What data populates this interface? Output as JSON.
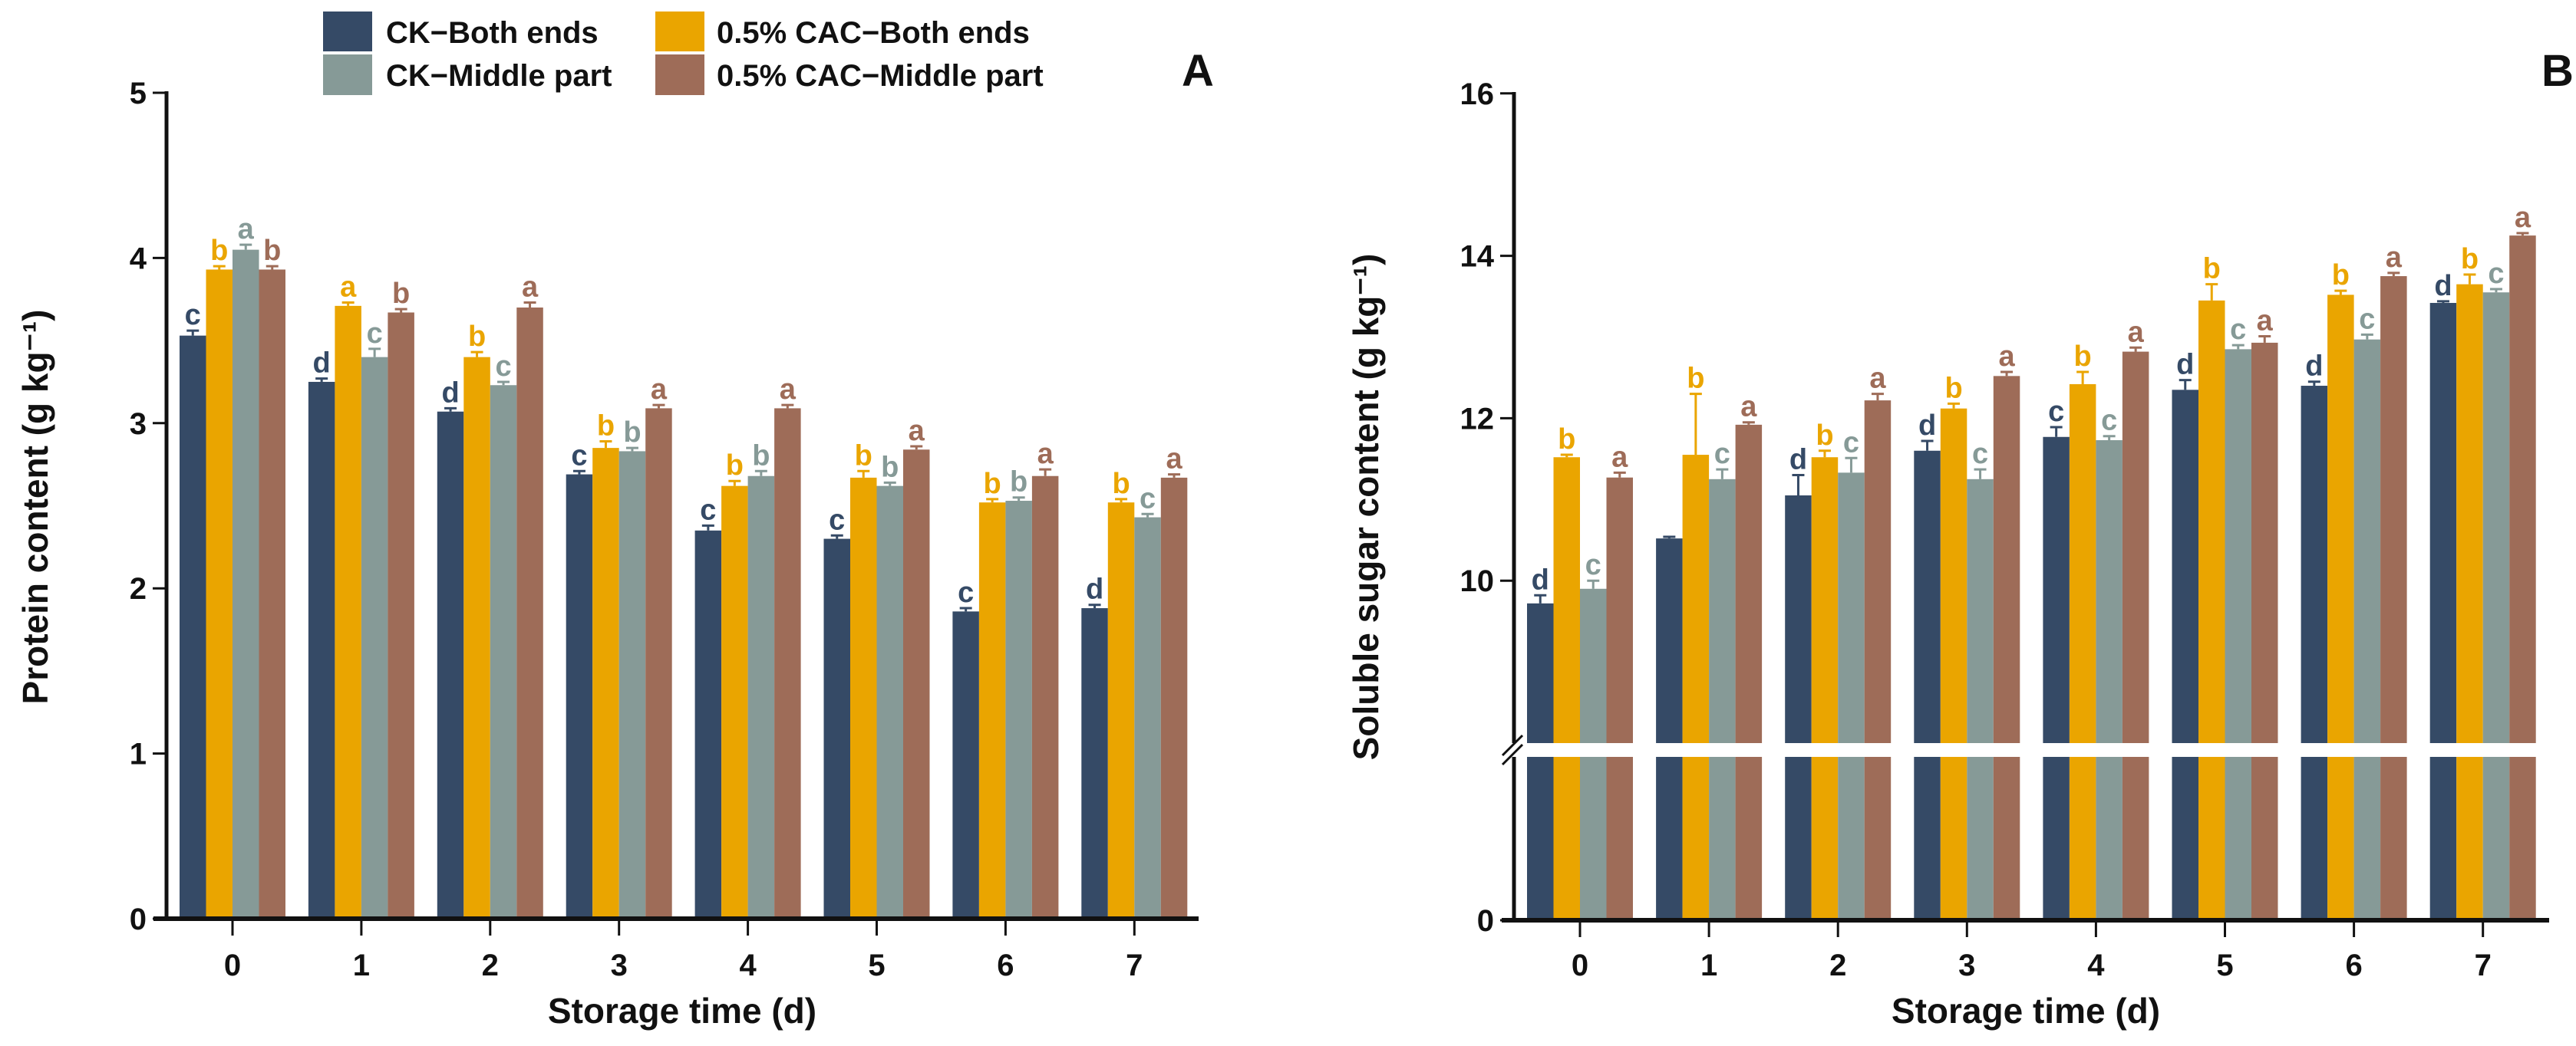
{
  "legend": {
    "items": [
      {
        "label": "CK−Both ends",
        "color": "#354a66"
      },
      {
        "label": "0.5% CAC−Both ends",
        "color": "#eaa500"
      },
      {
        "label": "CK−Middle part",
        "color": "#869a97"
      },
      {
        "label": "0.5% CAC−Middle part",
        "color": "#9e6c58"
      }
    ]
  },
  "chart_data": [
    {
      "type": "bar",
      "panel": "A",
      "title": "",
      "xlabel": "Storage time (d)",
      "ylabel": "Protein content (g kg⁻¹)",
      "ylim": [
        0,
        5
      ],
      "yticks": [
        "0",
        "1",
        "2",
        "3",
        "4",
        "5"
      ],
      "categories": [
        "0",
        "1",
        "2",
        "3",
        "4",
        "5",
        "6",
        "7"
      ],
      "series": [
        {
          "name": "CK−Both ends",
          "values": [
            3.53,
            3.25,
            3.07,
            2.69,
            2.35,
            2.3,
            1.86,
            1.88
          ],
          "errors": [
            0.03,
            0.02,
            0.02,
            0.02,
            0.03,
            0.02,
            0.02,
            0.02
          ],
          "letters": [
            "c",
            "d",
            "d",
            "c",
            "c",
            "c",
            "c",
            "d"
          ]
        },
        {
          "name": "0.5% CAC−Both ends",
          "values": [
            3.93,
            3.71,
            3.4,
            2.85,
            2.62,
            2.67,
            2.52,
            2.52
          ],
          "errors": [
            0.02,
            0.02,
            0.03,
            0.04,
            0.03,
            0.04,
            0.02,
            0.02
          ],
          "letters": [
            "b",
            "a",
            "b",
            "b",
            "b",
            "b",
            "b",
            "b"
          ]
        },
        {
          "name": "CK−Middle part",
          "values": [
            4.05,
            3.4,
            3.23,
            2.83,
            2.68,
            2.62,
            2.53,
            2.43
          ],
          "errors": [
            0.03,
            0.05,
            0.02,
            0.02,
            0.03,
            0.02,
            0.02,
            0.02
          ],
          "letters": [
            "a",
            "c",
            "c",
            "b",
            "b",
            "b",
            "b",
            "c"
          ]
        },
        {
          "name": "0.5% CAC−Middle part",
          "values": [
            3.93,
            3.67,
            3.7,
            3.09,
            3.09,
            2.84,
            2.68,
            2.67
          ],
          "errors": [
            0.02,
            0.02,
            0.03,
            0.02,
            0.02,
            0.02,
            0.04,
            0.02
          ],
          "letters": [
            "b",
            "b",
            "a",
            "a",
            "a",
            "a",
            "a",
            "a"
          ]
        }
      ]
    },
    {
      "type": "bar",
      "panel": "B",
      "title": "",
      "xlabel": "Storage time (d)",
      "ylabel": "Soluble sugar content (g kg⁻¹)",
      "ylim": [
        0,
        16
      ],
      "axis_break": [
        0,
        8
      ],
      "yticks": [
        "0",
        "10",
        "12",
        "14",
        "16"
      ],
      "categories": [
        "0",
        "1",
        "2",
        "3",
        "4",
        "5",
        "6",
        "7"
      ],
      "series": [
        {
          "name": "CK−Both ends",
          "values": [
            9.72,
            10.52,
            11.05,
            11.6,
            11.77,
            12.35,
            12.4,
            13.42
          ],
          "errors": [
            0.1,
            0.02,
            0.25,
            0.12,
            0.12,
            0.12,
            0.05,
            0.02
          ],
          "letters": [
            "d",
            "",
            "d",
            "d",
            "c",
            "d",
            "d",
            "d"
          ]
        },
        {
          "name": "0.5% CAC−Both ends",
          "values": [
            11.52,
            11.55,
            11.52,
            12.12,
            12.42,
            13.45,
            13.52,
            13.65
          ],
          "errors": [
            0.03,
            0.75,
            0.08,
            0.06,
            0.15,
            0.2,
            0.05,
            0.12
          ],
          "letters": [
            "b",
            "b",
            "b",
            "b",
            "b",
            "b",
            "b",
            "b"
          ]
        },
        {
          "name": "CK−Middle part",
          "values": [
            9.9,
            11.25,
            11.33,
            11.25,
            11.73,
            12.85,
            12.97,
            13.55
          ],
          "errors": [
            0.1,
            0.12,
            0.18,
            0.12,
            0.05,
            0.05,
            0.06,
            0.04
          ],
          "letters": [
            "c",
            "c",
            "c",
            "c",
            "c",
            "c",
            "c",
            "c"
          ]
        },
        {
          "name": "0.5% CAC−Middle part",
          "values": [
            11.27,
            11.92,
            12.22,
            12.52,
            12.82,
            12.93,
            13.75,
            14.25
          ],
          "errors": [
            0.06,
            0.03,
            0.08,
            0.05,
            0.05,
            0.08,
            0.04,
            0.03
          ],
          "letters": [
            "a",
            "a",
            "a",
            "a",
            "a",
            "a",
            "a",
            "a"
          ]
        }
      ]
    }
  ]
}
